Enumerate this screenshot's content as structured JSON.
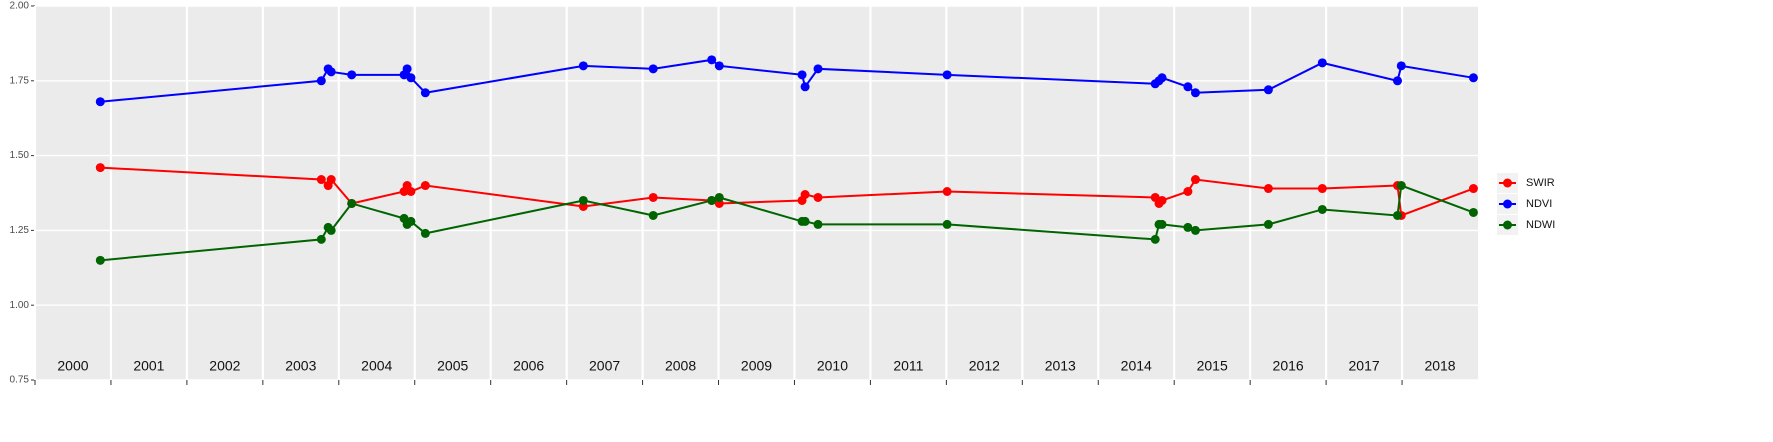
{
  "chart_data": {
    "type": "line",
    "x": [
      2000.86,
      2003.77,
      2003.86,
      2003.9,
      2004.17,
      2004.86,
      2004.9,
      2004.95,
      2005.14,
      2007.22,
      2008.14,
      2008.91,
      2009.01,
      2010.1,
      2010.14,
      2010.31,
      2012.01,
      2014.75,
      2014.8,
      2014.84,
      2015.18,
      2015.28,
      2016.24,
      2016.95,
      2017.94,
      2017.99,
      2018.94
    ],
    "xlim": [
      2000,
      2019
    ],
    "xticks": [
      2000,
      2001,
      2002,
      2003,
      2004,
      2005,
      2006,
      2007,
      2008,
      2009,
      2010,
      2011,
      2012,
      2013,
      2014,
      2015,
      2016,
      2017,
      2018
    ],
    "ylim": [
      0.75,
      2
    ],
    "yticks": [
      0.75,
      {
        "value": 1,
        "label": "1.00"
      },
      1.25,
      {
        "value": 1.5,
        "label": "1.50"
      },
      1.75,
      {
        "value": 2,
        "label": "2.00"
      }
    ],
    "grid": true,
    "legend": "right",
    "series": [
      {
        "name": "SWIR",
        "color": "#ff0000",
        "values": [
          1.46,
          1.42,
          1.4,
          1.42,
          1.34,
          1.38,
          1.4,
          1.38,
          1.4,
          1.33,
          1.36,
          1.35,
          1.34,
          1.35,
          1.37,
          1.36,
          1.38,
          1.36,
          1.34,
          1.35,
          1.38,
          1.42,
          1.39,
          1.39,
          1.4,
          1.3,
          1.39
        ]
      },
      {
        "name": "NDVI",
        "color": "#0000ff",
        "values": [
          1.68,
          1.75,
          1.79,
          1.78,
          1.77,
          1.77,
          1.79,
          1.76,
          1.71,
          1.8,
          1.79,
          1.82,
          1.8,
          1.77,
          1.73,
          1.79,
          1.77,
          1.74,
          1.75,
          1.76,
          1.73,
          1.71,
          1.72,
          1.81,
          1.75,
          1.8,
          1.76
        ]
      },
      {
        "name": "NDWI",
        "color": "#006400",
        "values": [
          1.15,
          1.22,
          1.26,
          1.25,
          1.34,
          1.29,
          1.27,
          1.28,
          1.24,
          1.35,
          1.3,
          1.35,
          1.36,
          1.28,
          1.28,
          1.27,
          1.27,
          1.22,
          1.27,
          1.27,
          1.26,
          1.25,
          1.27,
          1.32,
          1.3,
          1.4,
          1.31
        ]
      }
    ]
  }
}
